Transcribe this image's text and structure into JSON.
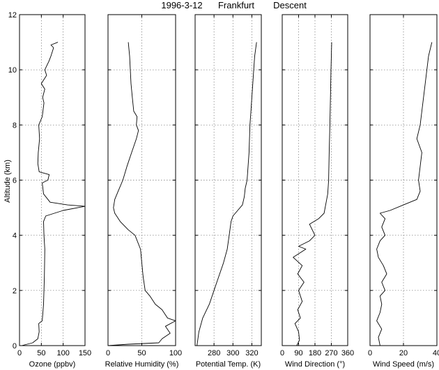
{
  "chart_data": {
    "type": "line",
    "title_parts": [
      "1996-3-12",
      "Frankfurt",
      "Descent"
    ],
    "ylabel": "Altitude (km)",
    "ylim": [
      0,
      12
    ],
    "yticks": [
      0,
      2,
      4,
      6,
      8,
      10,
      12
    ],
    "grid": true,
    "panels": [
      {
        "xlabel": "Ozone (ppbv)",
        "xlim": [
          0,
          150
        ],
        "xticks": [
          0,
          50,
          100,
          150
        ],
        "points": [
          [
            5,
            0
          ],
          [
            30,
            0.1
          ],
          [
            42,
            0.25
          ],
          [
            45,
            0.5
          ],
          [
            44,
            0.8
          ],
          [
            52,
            0.9
          ],
          [
            55,
            1.5
          ],
          [
            57,
            2.5
          ],
          [
            58,
            3.5
          ],
          [
            56,
            4.0
          ],
          [
            55,
            4.5
          ],
          [
            60,
            4.7
          ],
          [
            100,
            4.9
          ],
          [
            150,
            5.05
          ],
          [
            110,
            5.1
          ],
          [
            70,
            5.2
          ],
          [
            55,
            5.5
          ],
          [
            52,
            5.9
          ],
          [
            65,
            6.0
          ],
          [
            68,
            6.2
          ],
          [
            45,
            6.3
          ],
          [
            42,
            6.6
          ],
          [
            43,
            7.0
          ],
          [
            46,
            7.5
          ],
          [
            44,
            8.0
          ],
          [
            52,
            8.3
          ],
          [
            56,
            8.8
          ],
          [
            53,
            9.0
          ],
          [
            58,
            9.3
          ],
          [
            50,
            9.5
          ],
          [
            62,
            9.8
          ],
          [
            58,
            10.0
          ],
          [
            67,
            10.3
          ],
          [
            72,
            10.5
          ],
          [
            78,
            10.8
          ],
          [
            72,
            10.9
          ],
          [
            88,
            11.0
          ]
        ]
      },
      {
        "xlabel": "Relative Humidity (%)",
        "xlim": [
          0,
          100
        ],
        "xticks": [
          0,
          50,
          100
        ],
        "points": [
          [
            0,
            0
          ],
          [
            30,
            0.05
          ],
          [
            75,
            0.1
          ],
          [
            80,
            0.25
          ],
          [
            92,
            0.45
          ],
          [
            85,
            0.7
          ],
          [
            100,
            0.9
          ],
          [
            88,
            1.0
          ],
          [
            80,
            1.3
          ],
          [
            70,
            1.5
          ],
          [
            62,
            1.8
          ],
          [
            55,
            2.0
          ],
          [
            52,
            2.5
          ],
          [
            50,
            3.0
          ],
          [
            48,
            3.5
          ],
          [
            40,
            4.0
          ],
          [
            30,
            4.2
          ],
          [
            18,
            4.5
          ],
          [
            10,
            4.8
          ],
          [
            8,
            5.0
          ],
          [
            10,
            5.3
          ],
          [
            15,
            5.6
          ],
          [
            22,
            6.0
          ],
          [
            28,
            6.5
          ],
          [
            35,
            7.0
          ],
          [
            42,
            7.5
          ],
          [
            45,
            7.8
          ],
          [
            42,
            8.0
          ],
          [
            43,
            8.3
          ],
          [
            38,
            8.5
          ],
          [
            36,
            9.0
          ],
          [
            34,
            9.5
          ],
          [
            33,
            10.0
          ],
          [
            32,
            10.5
          ],
          [
            30,
            11.0
          ]
        ]
      },
      {
        "xlabel": "Potential Temp. (K)",
        "xlim": [
          260,
          330
        ],
        "xticks": [
          280,
          300,
          320
        ],
        "points": [
          [
            262,
            0
          ],
          [
            264,
            0.5
          ],
          [
            268,
            1.0
          ],
          [
            275,
            1.5
          ],
          [
            280,
            2.0
          ],
          [
            285,
            2.5
          ],
          [
            290,
            3.0
          ],
          [
            294,
            3.5
          ],
          [
            296,
            4.0
          ],
          [
            298,
            4.5
          ],
          [
            300,
            4.7
          ],
          [
            305,
            4.9
          ],
          [
            310,
            5.1
          ],
          [
            312,
            5.4
          ],
          [
            313,
            5.7
          ],
          [
            315,
            6.0
          ],
          [
            316,
            6.5
          ],
          [
            317,
            7.0
          ],
          [
            318,
            8.0
          ],
          [
            319,
            8.5
          ],
          [
            320,
            9.0
          ],
          [
            321,
            9.5
          ],
          [
            322,
            10.0
          ],
          [
            323,
            10.5
          ],
          [
            325,
            11.0
          ]
        ]
      },
      {
        "xlabel": "Wind Direction (°)",
        "xlim": [
          0,
          360
        ],
        "xticks": [
          0,
          90,
          180,
          270,
          360
        ],
        "points": [
          [
            80,
            0
          ],
          [
            95,
            0.2
          ],
          [
            90,
            0.5
          ],
          [
            70,
            0.8
          ],
          [
            100,
            1.0
          ],
          [
            85,
            1.3
          ],
          [
            110,
            1.6
          ],
          [
            90,
            2.0
          ],
          [
            120,
            2.3
          ],
          [
            85,
            2.6
          ],
          [
            110,
            2.9
          ],
          [
            60,
            3.2
          ],
          [
            130,
            3.5
          ],
          [
            90,
            3.6
          ],
          [
            150,
            3.8
          ],
          [
            180,
            4.0
          ],
          [
            165,
            4.2
          ],
          [
            150,
            4.4
          ],
          [
            200,
            4.6
          ],
          [
            230,
            4.8
          ],
          [
            250,
            5.5
          ],
          [
            255,
            6.0
          ],
          [
            258,
            7.0
          ],
          [
            262,
            8.0
          ],
          [
            265,
            9.0
          ],
          [
            268,
            10.0
          ],
          [
            272,
            11.0
          ]
        ]
      },
      {
        "xlabel": "Wind Speed (m/s)",
        "xlim": [
          0,
          40
        ],
        "xticks": [
          0,
          20,
          40
        ],
        "points": [
          [
            6,
            0
          ],
          [
            5,
            0.3
          ],
          [
            7,
            0.6
          ],
          [
            4,
            0.9
          ],
          [
            6,
            1.2
          ],
          [
            7,
            1.5
          ],
          [
            6,
            1.8
          ],
          [
            9,
            2.0
          ],
          [
            7,
            2.3
          ],
          [
            10,
            2.6
          ],
          [
            8,
            2.9
          ],
          [
            5,
            3.2
          ],
          [
            4,
            3.5
          ],
          [
            6,
            3.8
          ],
          [
            9,
            4.0
          ],
          [
            7,
            4.3
          ],
          [
            9,
            4.6
          ],
          [
            6,
            4.8
          ],
          [
            12,
            4.9
          ],
          [
            20,
            5.1
          ],
          [
            28,
            5.3
          ],
          [
            30,
            5.6
          ],
          [
            29,
            6.0
          ],
          [
            30,
            6.5
          ],
          [
            31,
            7.0
          ],
          [
            28,
            7.5
          ],
          [
            30,
            8.0
          ],
          [
            31,
            8.5
          ],
          [
            32,
            9.0
          ],
          [
            33,
            9.5
          ],
          [
            34,
            10.0
          ],
          [
            35,
            10.5
          ],
          [
            37,
            11.0
          ]
        ]
      }
    ]
  }
}
